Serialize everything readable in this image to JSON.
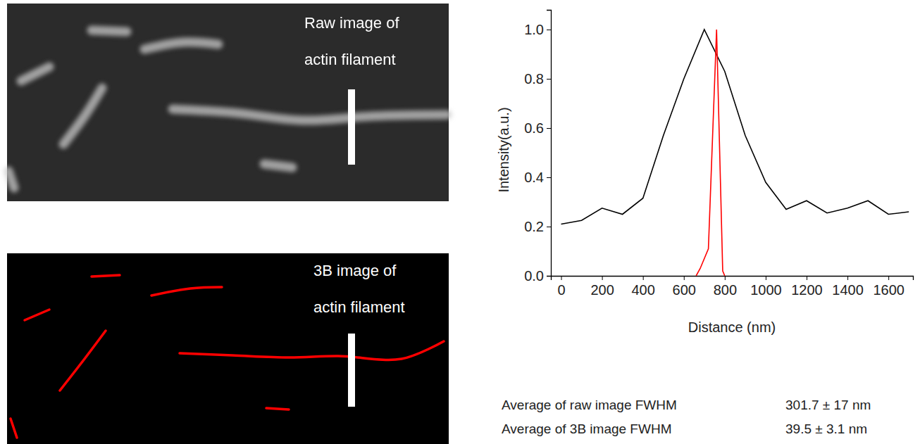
{
  "chart_data": {
    "type": "line",
    "x_label": "Distance (nm)",
    "y_label": "Intensity(a.u.)",
    "xlim": [
      -50,
      1720
    ],
    "xticks": [
      0,
      200,
      400,
      600,
      800,
      1000,
      1200,
      1400,
      1600
    ],
    "ylim": [
      0,
      1.08
    ],
    "yticks": [
      {
        "value": 0,
        "label": "0.0"
      },
      {
        "value": 0.2,
        "label": "0.2"
      },
      {
        "value": 0.4,
        "label": "0.4"
      },
      {
        "value": 0.6,
        "label": "0.6"
      },
      {
        "value": 0.8,
        "label": "0.8"
      },
      {
        "value": 1,
        "label": "1.0"
      }
    ],
    "grid": false,
    "series": [
      {
        "color": "#000000",
        "x": [
          0,
          100,
          200,
          300,
          400,
          500,
          600,
          700,
          800,
          900,
          1000,
          1100,
          1200,
          1300,
          1400,
          1500,
          1600,
          1700
        ],
        "values": [
          0.21,
          0.225,
          0.275,
          0.25,
          0.315,
          0.57,
          0.8,
          1.0,
          0.83,
          0.57,
          0.38,
          0.27,
          0.305,
          0.255,
          0.275,
          0.305,
          0.25,
          0.26
        ]
      },
      {
        "color": "#ff0000",
        "x": [
          660,
          680,
          720,
          760,
          790,
          800
        ],
        "values": [
          0,
          0.03,
          0.11,
          1.0,
          0.02,
          0
        ]
      }
    ]
  },
  "images": [
    {
      "lines": [
        "Raw image of",
        "actin filament"
      ]
    },
    {
      "lines": [
        "3B image of",
        "actin filament"
      ]
    }
  ],
  "stats": [
    {
      "label": "Average of raw image FWHM",
      "value": "301.7 ± 17 nm"
    },
    {
      "label": "Average of 3B image FWHM",
      "value": "39.5 ± 3.1 nm"
    }
  ]
}
